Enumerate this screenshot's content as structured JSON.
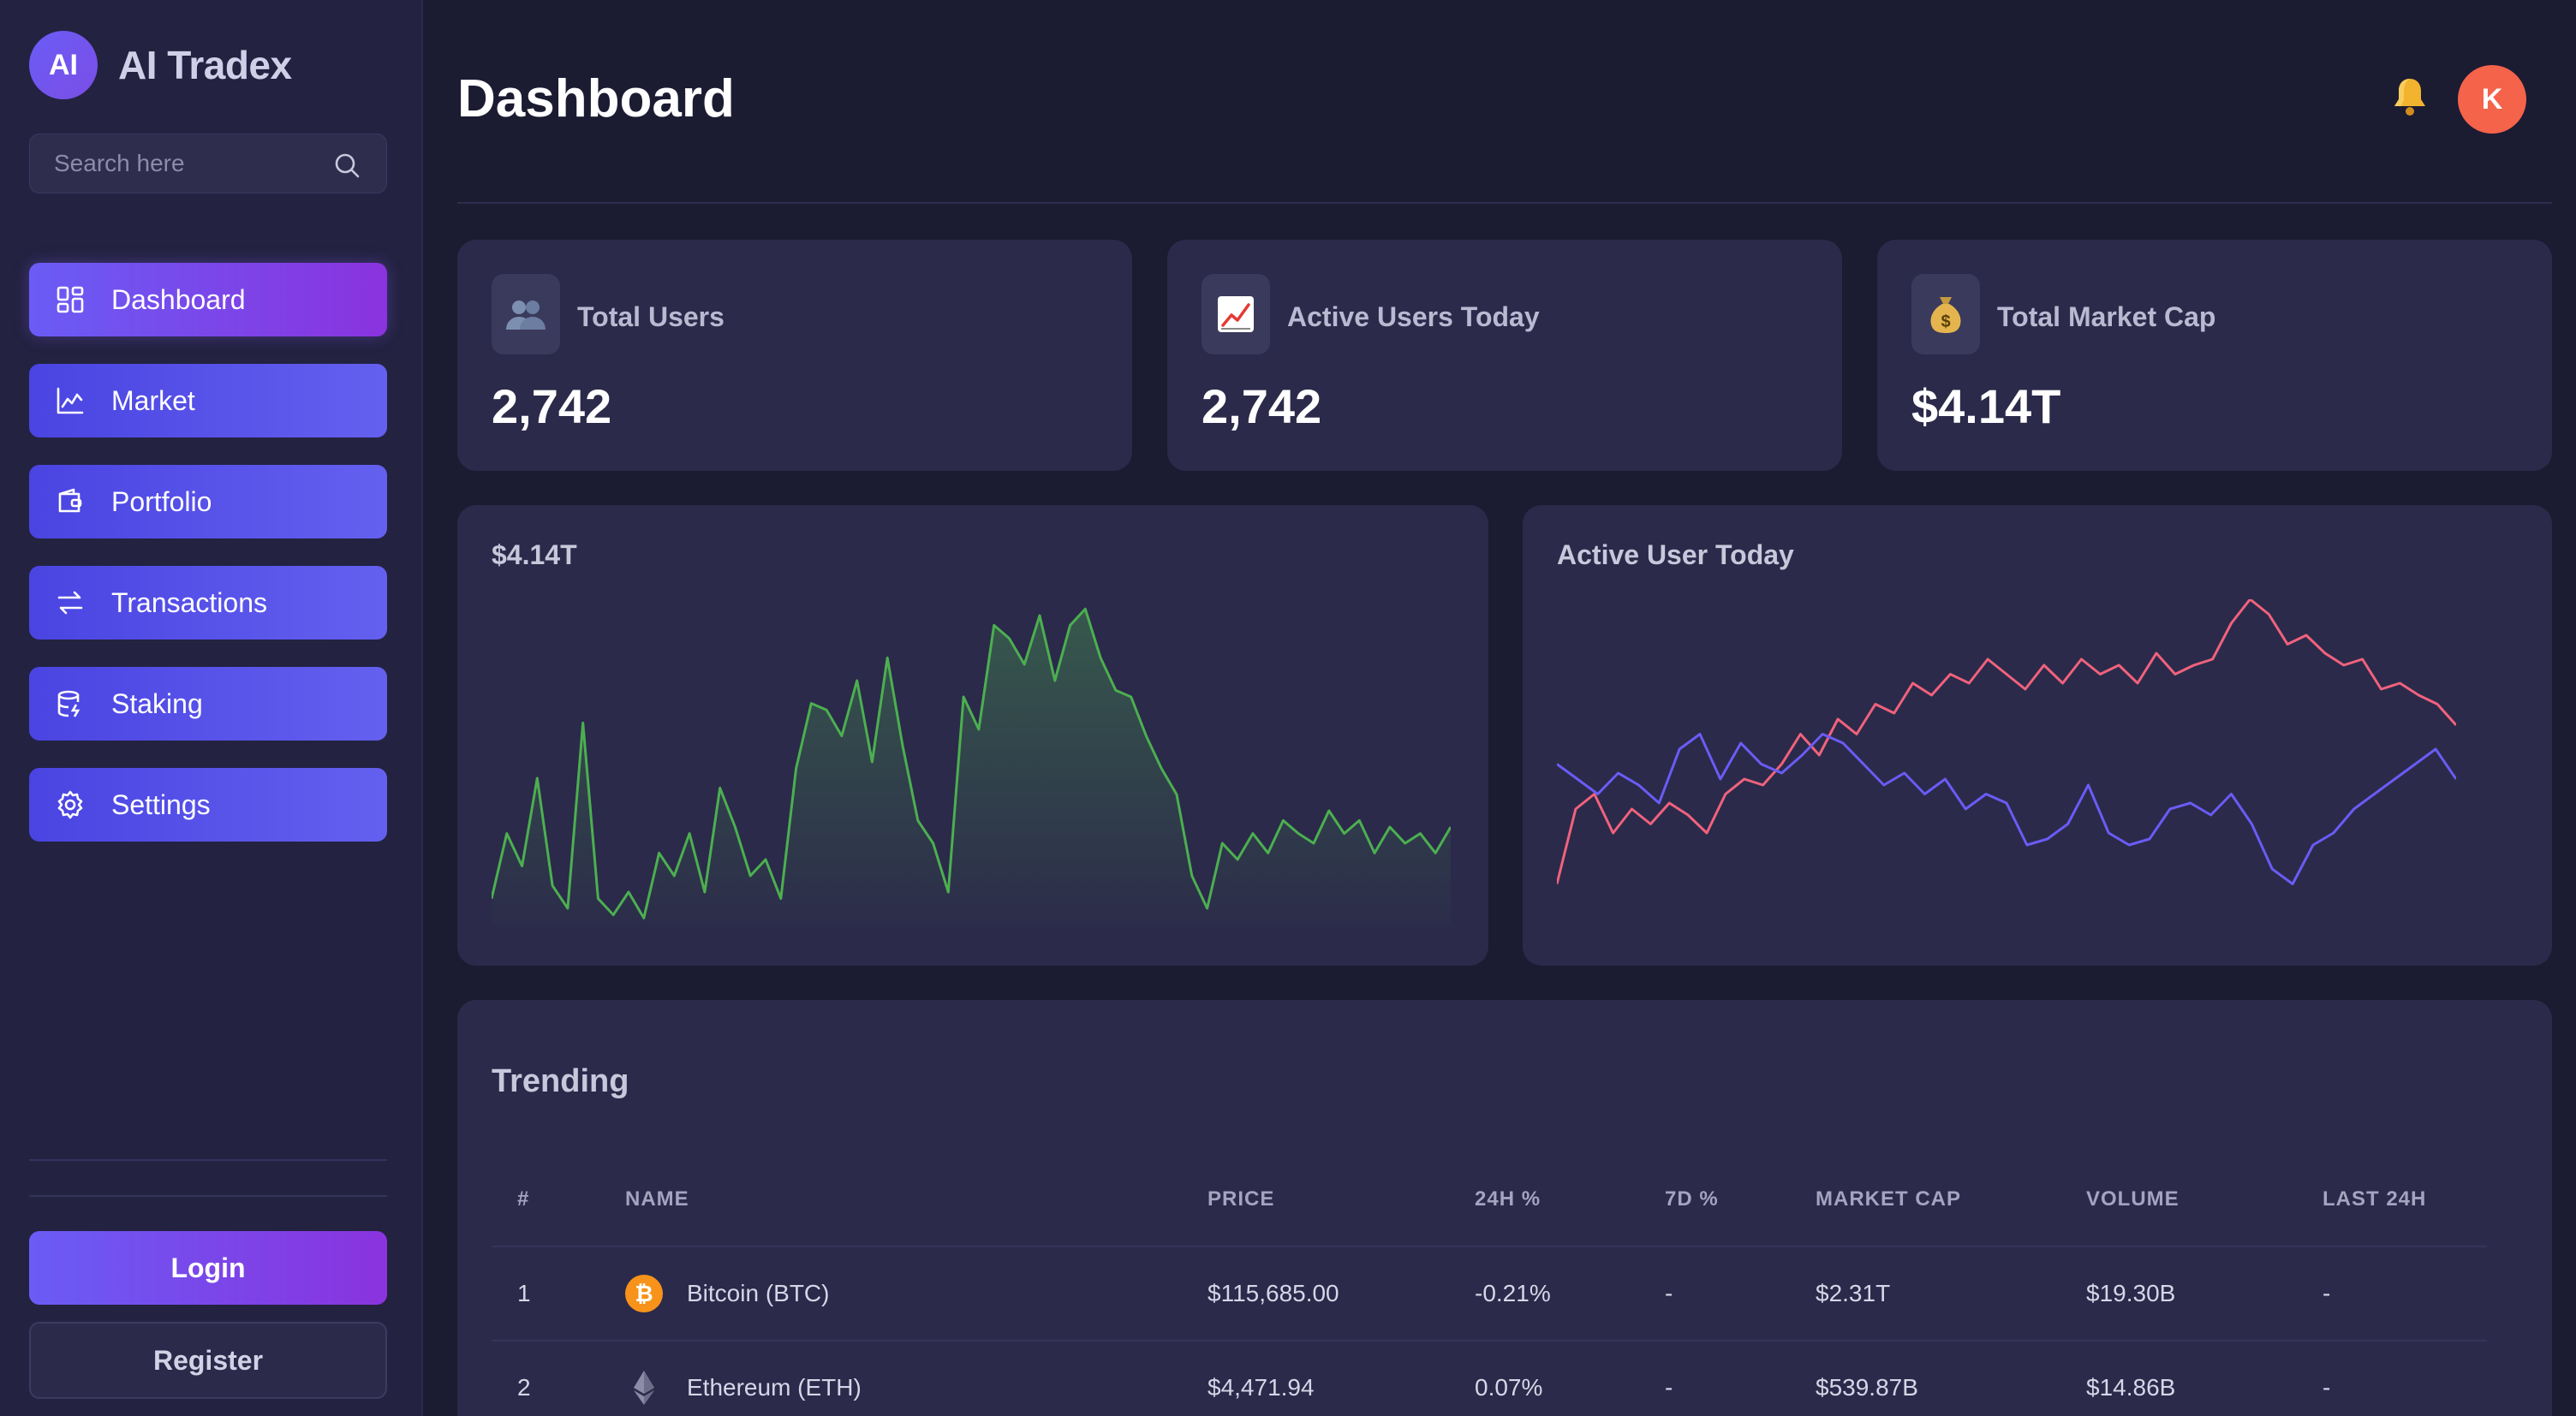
{
  "brand": {
    "logo_text": "AI",
    "name": "AI Tradex"
  },
  "search": {
    "placeholder": "Search here"
  },
  "nav": {
    "items": [
      {
        "label": "Dashboard",
        "icon": "dashboard-grid-icon",
        "active": true
      },
      {
        "label": "Market",
        "icon": "line-chart-icon"
      },
      {
        "label": "Portfolio",
        "icon": "wallet-icon"
      },
      {
        "label": "Transactions",
        "icon": "arrows-swap-icon"
      },
      {
        "label": "Staking",
        "icon": "database-coins-icon"
      },
      {
        "label": "Settings",
        "icon": "gear-icon"
      }
    ]
  },
  "auth": {
    "login_label": "Login",
    "register_label": "Register"
  },
  "header": {
    "title": "Dashboard",
    "avatar_initial": "K"
  },
  "stats": [
    {
      "label": "Total Users",
      "value": "2,742",
      "icon": "users-icon"
    },
    {
      "label": "Active Users Today",
      "value": "2,742",
      "icon": "trend-up-chart-icon"
    },
    {
      "label": "Total Market Cap",
      "value": "$4.14T",
      "icon": "money-bag-icon"
    }
  ],
  "charts": {
    "market": {
      "title": "$4.14T",
      "color": "#4caf50"
    },
    "active": {
      "title": "Active User Today",
      "series_colors": [
        "#f0627d",
        "#6a5cf5"
      ]
    }
  },
  "chart_data": [
    {
      "type": "area",
      "title": "$4.14T",
      "xlabel": "",
      "ylabel": "",
      "grid": false,
      "series": [
        {
          "values": [
            0.08,
            0.28,
            0.18,
            0.45,
            0.12,
            0.05,
            0.62,
            0.08,
            0.03,
            0.1,
            0.02,
            0.22,
            0.15,
            0.28,
            0.1,
            0.42,
            0.3,
            0.15,
            0.2,
            0.08,
            0.48,
            0.68,
            0.66,
            0.58,
            0.75,
            0.5,
            0.82,
            0.55,
            0.32,
            0.25,
            0.1,
            0.7,
            0.6,
            0.92,
            0.88,
            0.8,
            0.95,
            0.75,
            0.92,
            0.97,
            0.82,
            0.72,
            0.7,
            0.58,
            0.48,
            0.4,
            0.15,
            0.05,
            0.25,
            0.2,
            0.28,
            0.22,
            0.32,
            0.28,
            0.25,
            0.35,
            0.28,
            0.32,
            0.22,
            0.3,
            0.25,
            0.28,
            0.22,
            0.3
          ]
        }
      ]
    },
    {
      "type": "line",
      "title": "Active User Today",
      "xlabel": "",
      "ylabel": "",
      "grid": false,
      "series": [
        {
          "values": [
            0.05,
            0.3,
            0.35,
            0.22,
            0.3,
            0.25,
            0.32,
            0.28,
            0.22,
            0.35,
            0.4,
            0.38,
            0.45,
            0.55,
            0.48,
            0.6,
            0.55,
            0.65,
            0.62,
            0.72,
            0.68,
            0.75,
            0.72,
            0.8,
            0.75,
            0.7,
            0.78,
            0.72,
            0.8,
            0.75,
            0.78,
            0.72,
            0.82,
            0.75,
            0.78,
            0.8,
            0.92,
            1.0,
            0.95,
            0.85,
            0.88,
            0.82,
            0.78,
            0.8,
            0.7,
            0.72,
            0.68,
            0.65,
            0.58
          ]
        },
        {
          "values": [
            0.45,
            0.4,
            0.35,
            0.42,
            0.38,
            0.32,
            0.5,
            0.55,
            0.4,
            0.52,
            0.45,
            0.42,
            0.48,
            0.55,
            0.52,
            0.45,
            0.38,
            0.42,
            0.35,
            0.4,
            0.3,
            0.35,
            0.32,
            0.18,
            0.2,
            0.25,
            0.38,
            0.22,
            0.18,
            0.2,
            0.3,
            0.32,
            0.28,
            0.35,
            0.25,
            0.1,
            0.05,
            0.18,
            0.22,
            0.3,
            0.35,
            0.4,
            0.45,
            0.5,
            0.4
          ]
        }
      ]
    }
  ],
  "trending": {
    "title": "Trending",
    "columns": [
      "#",
      "NAME",
      "PRICE",
      "24H %",
      "7D %",
      "MARKET CAP",
      "VOLUME",
      "LAST 24H"
    ],
    "rows": [
      {
        "rank": "1",
        "name": "Bitcoin (BTC)",
        "icon": "bitcoin-icon",
        "price": "$115,685.00",
        "change_24h": "-0.21%",
        "change_7d": "-",
        "market_cap": "$2.31T",
        "volume": "$19.30B",
        "last_24h": "-"
      },
      {
        "rank": "2",
        "name": "Ethereum (ETH)",
        "icon": "ethereum-icon",
        "price": "$4,471.94",
        "change_24h": "0.07%",
        "change_7d": "-",
        "market_cap": "$539.87B",
        "volume": "$14.86B",
        "last_24h": "-"
      }
    ]
  }
}
